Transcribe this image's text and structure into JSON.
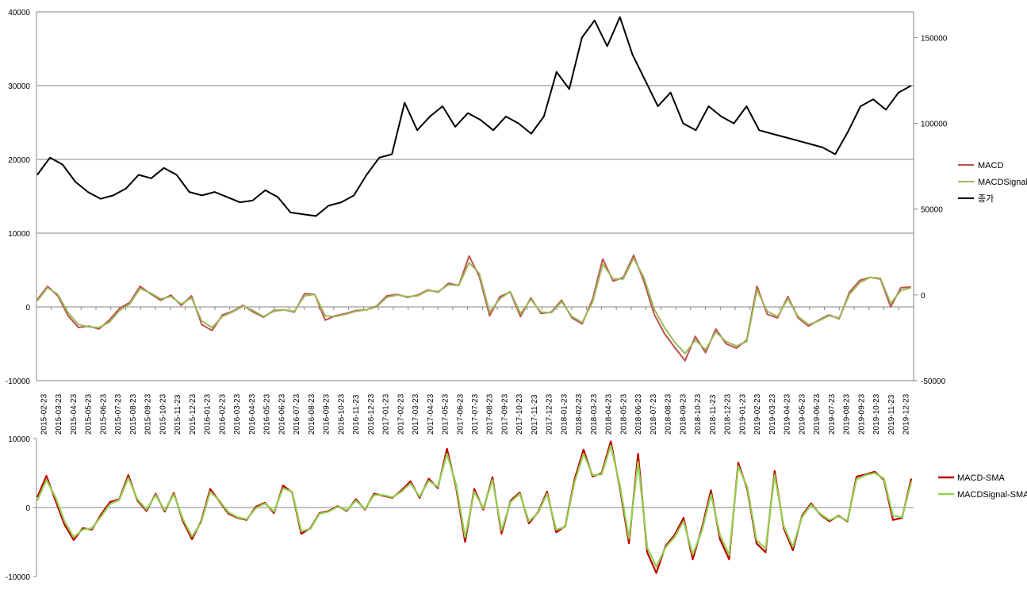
{
  "colors": {
    "close": "#000000",
    "macd": "#c0504d",
    "signal": "#9bbb59",
    "macd_sma": "#c00000",
    "signal_sma": "#92d050",
    "grid": "#868686"
  },
  "chart_data": [
    {
      "type": "line",
      "title": "",
      "grid": true,
      "legend_position": "right",
      "y_left": {
        "ticks": [
          "40000",
          "30000",
          "20000",
          "10000",
          "0",
          "-10000"
        ],
        "range": [
          -10000,
          40000
        ]
      },
      "y_right": {
        "ticks": [
          "150000",
          "100000",
          "50000",
          "0",
          "-50000"
        ],
        "range": [
          -50000,
          165000
        ]
      },
      "x_labels": [
        "2015-02-23",
        "2015-03-23",
        "2015-04-23",
        "2015-05-23",
        "2015-06-23",
        "2015-07-23",
        "2015-08-23",
        "2015-09-23",
        "2015-10-23",
        "2015-11-23",
        "2015-12-23",
        "2016-01-23",
        "2016-02-23",
        "2016-03-23",
        "2016-04-23",
        "2016-05-23",
        "2016-06-23",
        "2016-07-23",
        "2016-08-23",
        "2016-09-23",
        "2016-10-23",
        "2016-11-23",
        "2016-12-23",
        "2017-01-23",
        "2017-02-23",
        "2017-03-23",
        "2017-04-23",
        "2017-05-23",
        "2017-06-23",
        "2017-07-23",
        "2017-08-23",
        "2017-09-23",
        "2017-10-23",
        "2017-11-23",
        "2017-12-23",
        "2018-01-23",
        "2018-02-23",
        "2018-03-23",
        "2018-04-23",
        "2018-05-23",
        "2018-06-23",
        "2018-07-23",
        "2018-08-23",
        "2018-09-23",
        "2018-10-23",
        "2018-11-23",
        "2018-12-23",
        "2019-01-23",
        "2019-02-23",
        "2019-03-23",
        "2019-04-23",
        "2019-05-23",
        "2019-06-23",
        "2019-07-23",
        "2019-08-23",
        "2019-09-23",
        "2019-10-23",
        "2019-11-23",
        "2019-12-23"
      ],
      "series": [
        {
          "name": "MACD",
          "axis": "left",
          "color_key": "macd",
          "values": [
            1000,
            2800,
            1500,
            -1200,
            -2800,
            -2600,
            -3000,
            -1800,
            -200,
            600,
            2800,
            1800,
            900,
            1600,
            200,
            1500,
            -2400,
            -3200,
            -1100,
            -600,
            200,
            -700,
            -1400,
            -500,
            -400,
            -700,
            1800,
            1700,
            -1800,
            -1200,
            -900,
            -500,
            -400,
            100,
            1500,
            1700,
            1300,
            1600,
            2300,
            2000,
            3200,
            2900,
            6900,
            4100,
            -1200,
            1400,
            2000,
            -1300,
            1200,
            -900,
            -700,
            900,
            -1500,
            -2300,
            1000,
            6500,
            3500,
            4000,
            7000,
            3500,
            -1000,
            -3600,
            -5500,
            -7300,
            -4000,
            -6200,
            -3000,
            -5000,
            -5600,
            -4500,
            2800,
            -1000,
            -1500,
            1400,
            -1500,
            -2600,
            -1800,
            -1100,
            -1600,
            2000,
            3600,
            4000,
            3800,
            0,
            2600,
            2700
          ],
          "note_x": "values evenly spaced across x_labels"
        },
        {
          "name": "MACDSignal",
          "axis": "left",
          "color_key": "signal",
          "values": [
            800,
            2600,
            1700,
            -800,
            -2400,
            -2700,
            -2800,
            -2100,
            -500,
            400,
            2500,
            1900,
            1100,
            1400,
            400,
            1200,
            -1900,
            -2800,
            -1300,
            -700,
            100,
            -500,
            -1300,
            -600,
            -400,
            -600,
            1500,
            1700,
            -1200,
            -1300,
            -1000,
            -600,
            -400,
            0,
            1300,
            1600,
            1400,
            1500,
            2200,
            2100,
            3000,
            2900,
            6000,
            4500,
            -700,
            1100,
            2100,
            -900,
            1000,
            -700,
            -800,
            700,
            -1300,
            -2100,
            600,
            5800,
            3800,
            3800,
            6600,
            4000,
            -300,
            -2800,
            -4800,
            -6300,
            -4500,
            -5800,
            -3400,
            -4700,
            -5300,
            -4700,
            2300,
            -600,
            -1300,
            1100,
            -1300,
            -2400,
            -1900,
            -1200,
            -1500,
            1700,
            3300,
            4000,
            3900,
            500,
            2200,
            2600
          ]
        },
        {
          "name": "종가",
          "axis": "right",
          "color_key": "close",
          "values": [
            70000,
            80000,
            76000,
            66000,
            60000,
            56000,
            58000,
            62000,
            70000,
            68000,
            74000,
            70000,
            60000,
            58000,
            60000,
            57000,
            54000,
            55000,
            61000,
            57000,
            48000,
            47000,
            46000,
            52000,
            54000,
            58000,
            70000,
            80000,
            82000,
            112000,
            96000,
            104000,
            110000,
            98000,
            106000,
            102000,
            96000,
            104000,
            100000,
            94000,
            104000,
            130000,
            120000,
            150000,
            160000,
            145000,
            162000,
            140000,
            125000,
            110000,
            118000,
            100000,
            96000,
            110000,
            104000,
            100000,
            110000,
            96000,
            94000,
            92000,
            90000,
            88000,
            86000,
            82000,
            95000,
            110000,
            114000,
            108000,
            118000,
            122000
          ]
        }
      ]
    },
    {
      "type": "line",
      "title": "",
      "grid": false,
      "legend_position": "right",
      "y_left": {
        "ticks": [
          "10000",
          "0",
          "-10000"
        ],
        "range": [
          -10000,
          10000
        ]
      },
      "series": [
        {
          "name": "MACD-SMA",
          "color_key": "macd_sma",
          "values": [
            1500,
            4600,
            1000,
            -2500,
            -4700,
            -3000,
            -3200,
            -1000,
            800,
            1200,
            4700,
            1000,
            -500,
            2000,
            -600,
            2100,
            -2000,
            -4600,
            -2000,
            2700,
            900,
            -900,
            -1500,
            -1800,
            100,
            700,
            -800,
            3200,
            2200,
            -3800,
            -3000,
            -800,
            -500,
            200,
            -500,
            1200,
            -300,
            2000,
            1700,
            1400,
            2500,
            3800,
            1400,
            4200,
            2800,
            8500,
            3000,
            -5000,
            2700,
            -300,
            4400,
            -3800,
            1000,
            2200,
            -2300,
            -700,
            2300,
            -3600,
            -2700,
            4000,
            8400,
            4500,
            5000,
            9600,
            2800,
            -5200,
            7800,
            -6500,
            -9500,
            -5600,
            -4000,
            -1500,
            -7500,
            -3000,
            2500,
            -4600,
            -7500,
            6500,
            2600,
            -5200,
            -6500,
            5300,
            -3000,
            -6200,
            -1200,
            600,
            -1000,
            -2000,
            -1200,
            -2000,
            4500,
            4800,
            5200,
            4000,
            -1800,
            -1500,
            4200
          ]
        },
        {
          "name": "MACDSignal-SMA",
          "color_key": "signal_sma",
          "values": [
            1000,
            4000,
            1500,
            -2000,
            -4300,
            -3200,
            -3000,
            -1300,
            500,
            1100,
            4300,
            1200,
            -300,
            1800,
            -400,
            1900,
            -1700,
            -4200,
            -2200,
            2300,
            1000,
            -700,
            -1400,
            -1700,
            -100,
            600,
            -600,
            2800,
            2300,
            -3400,
            -3100,
            -900,
            -600,
            100,
            -400,
            1000,
            -200,
            1800,
            1800,
            1500,
            2300,
            3500,
            1600,
            3900,
            3000,
            7800,
            3400,
            -4300,
            2300,
            -100,
            4000,
            -3300,
            800,
            2000,
            -2000,
            -800,
            2000,
            -3200,
            -2800,
            3600,
            7800,
            4700,
            4800,
            9000,
            3200,
            -4500,
            6600,
            -5800,
            -8600,
            -5800,
            -4300,
            -2000,
            -6800,
            -3400,
            1900,
            -4000,
            -6900,
            6000,
            2900,
            -4700,
            -6000,
            4700,
            -2700,
            -5700,
            -1400,
            400,
            -900,
            -1800,
            -1300,
            -1900,
            4100,
            4700,
            5000,
            4200,
            -1200,
            -1400,
            3700
          ]
        }
      ]
    }
  ]
}
